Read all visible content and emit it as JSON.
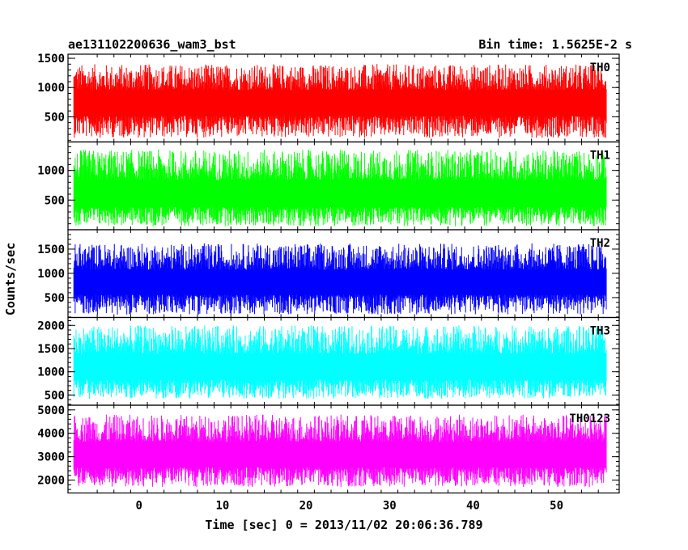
{
  "header": {
    "title_left": "ae131102200636_wam3_bst",
    "title_right": "Bin time: 1.5625E-2 s"
  },
  "chart_data": {
    "type": "line",
    "xlabel": "Time [sec] 0 = 2013/11/02 20:06:36.789",
    "ylabel": "Counts/sec",
    "xlim": [
      -8.5,
      57.5
    ],
    "data_xrange": [
      -7.8,
      56.0
    ],
    "xticks": [
      0,
      10,
      20,
      30,
      40,
      50
    ],
    "grid": false,
    "panels": [
      {
        "name": "TH0",
        "color": "#ff0000",
        "ylim": [
          70,
          1570
        ],
        "yticks": [
          500,
          1000,
          1500
        ],
        "band": [
          140,
          1400
        ],
        "mean": 720
      },
      {
        "name": "TH1",
        "color": "#00ff00",
        "ylim": [
          0,
          1480
        ],
        "yticks": [
          500,
          1000
        ],
        "band": [
          60,
          1350
        ],
        "mean": 560
      },
      {
        "name": "TH2",
        "color": "#0000ff",
        "ylim": [
          90,
          1900
        ],
        "yticks": [
          500,
          1000,
          1500
        ],
        "band": [
          150,
          1620
        ],
        "mean": 780
      },
      {
        "name": "TH3",
        "color": "#00ffff",
        "ylim": [
          280,
          2170
        ],
        "yticks": [
          500,
          1000,
          1500,
          2000
        ],
        "band": [
          420,
          2000
        ],
        "mean": 1050
      },
      {
        "name": "TH0123",
        "color": "#ff00ff",
        "ylim": [
          1450,
          5200
        ],
        "yticks": [
          2000,
          3000,
          4000,
          5000
        ],
        "band": [
          1700,
          4800
        ],
        "mean": 3000
      }
    ]
  }
}
